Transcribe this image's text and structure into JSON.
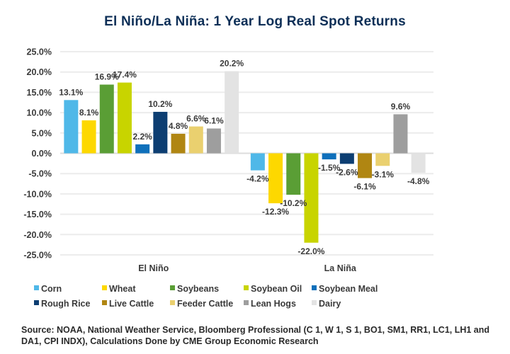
{
  "chart_data": {
    "type": "bar",
    "title": "El Niño/La Niña: 1 Year Log Real Spot Returns",
    "xlabel": "",
    "ylabel": "",
    "categories": [
      "El Niño",
      "La Niña"
    ],
    "ylim": [
      -25.0,
      25.0
    ],
    "ytick_step": 5.0,
    "yticks": [
      "25.0%",
      "20.0%",
      "15.0%",
      "10.0%",
      "5.0%",
      "0.0%",
      "-5.0%",
      "-10.0%",
      "-15.0%",
      "-20.0%",
      "-25.0%"
    ],
    "grid": true,
    "legend_position": "bottom",
    "value_format": "percent-1dp",
    "series": [
      {
        "name": "Corn",
        "color": "#4fb8e8",
        "values": [
          13.1,
          -4.2
        ],
        "labels": [
          "13.1%",
          "-4.2%"
        ]
      },
      {
        "name": "Wheat",
        "color": "#fdd800",
        "values": [
          8.1,
          -12.3
        ],
        "labels": [
          "8.1%",
          "-12.3%"
        ]
      },
      {
        "name": "Soybeans",
        "color": "#5a9e35",
        "values": [
          16.9,
          -10.2
        ],
        "labels": [
          "16.9%",
          "-10.2%"
        ]
      },
      {
        "name": "Soybean Oil",
        "color": "#c8d400",
        "values": [
          17.4,
          -22.0
        ],
        "labels": [
          "17.4%",
          "-22.0%"
        ]
      },
      {
        "name": "Soybean Meal",
        "color": "#0f70bb",
        "values": [
          2.2,
          -1.5
        ],
        "labels": [
          "2.2%",
          "-1.5%"
        ]
      },
      {
        "name": "Rough Rice",
        "color": "#0d3e72",
        "values": [
          10.2,
          -2.6
        ],
        "labels": [
          "10.2%",
          "-2.6%"
        ]
      },
      {
        "name": "Live Cattle",
        "color": "#b08612",
        "values": [
          4.8,
          -6.1
        ],
        "labels": [
          "4.8%",
          "-6.1%"
        ]
      },
      {
        "name": "Feeder Cattle",
        "color": "#ead06f",
        "values": [
          6.6,
          -3.1
        ],
        "labels": [
          "6.6%",
          "-3.1%"
        ]
      },
      {
        "name": "Lean Hogs",
        "color": "#9e9e9e",
        "values": [
          6.1,
          9.6
        ],
        "labels": [
          "6.1%",
          "9.6%"
        ]
      },
      {
        "name": "Dairy",
        "color": "#e3e3e3",
        "values": [
          20.2,
          -4.8
        ],
        "labels": [
          "20.2%",
          "-4.8%"
        ]
      }
    ]
  },
  "legend_rows": [
    [
      0,
      1,
      2,
      3,
      4
    ],
    [
      5,
      6,
      7,
      8,
      9
    ]
  ],
  "source": "Source: NOAA, National Weather Service, Bloomberg Professional (C 1, W 1, S 1, BO1, SM1, RR1, LC1, LH1 and DA1, CPI INDX), Calculations Done by CME Group Economic Research"
}
